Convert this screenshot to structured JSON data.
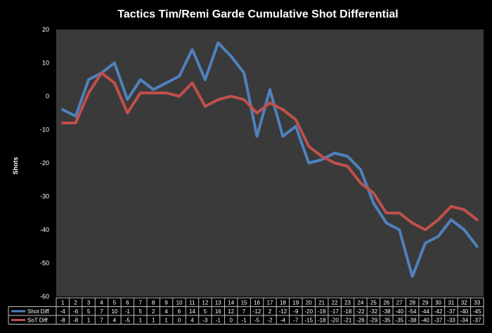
{
  "chart_data": {
    "type": "line",
    "title": "Tactics Tim/Remi Garde Cumulative Shot Differential",
    "ylabel": "Shots",
    "xlabel": "",
    "ylim": [
      -60,
      20
    ],
    "yticks": [
      20,
      10,
      0,
      -10,
      -20,
      -30,
      -40,
      -50,
      -60
    ],
    "grid": false,
    "legend": "data-table",
    "categories": [
      "1",
      "2",
      "3",
      "4",
      "5",
      "6",
      "7",
      "8",
      "9",
      "10",
      "11",
      "12",
      "13",
      "14",
      "15",
      "16",
      "17",
      "18",
      "19",
      "20",
      "21",
      "22",
      "23",
      "24",
      "25",
      "26",
      "27",
      "28",
      "29",
      "30",
      "31",
      "32",
      "33"
    ],
    "series": [
      {
        "name": "Shot Diff",
        "color": "#4f81bd",
        "values": [
          -4,
          -6,
          5,
          7,
          10,
          -1,
          5,
          2,
          4,
          6,
          14,
          5,
          16,
          12,
          7,
          -12,
          2,
          -12,
          -9,
          -20,
          -19,
          -17,
          -18,
          -22,
          -32,
          -38,
          -40,
          -54,
          -44,
          -42,
          -37,
          -40,
          -45
        ]
      },
      {
        "name": "SoT Diff",
        "color": "#c0504d",
        "values": [
          -8,
          -8,
          1,
          7,
          4,
          -5,
          1,
          1,
          1,
          0,
          4,
          -3,
          -1,
          0,
          -1,
          -5,
          -2,
          -4,
          -7,
          -15,
          -18,
          -20,
          -21,
          -26,
          -29,
          -35,
          -35,
          -38,
          -40,
          -37,
          -33,
          -34,
          -37
        ]
      }
    ]
  }
}
